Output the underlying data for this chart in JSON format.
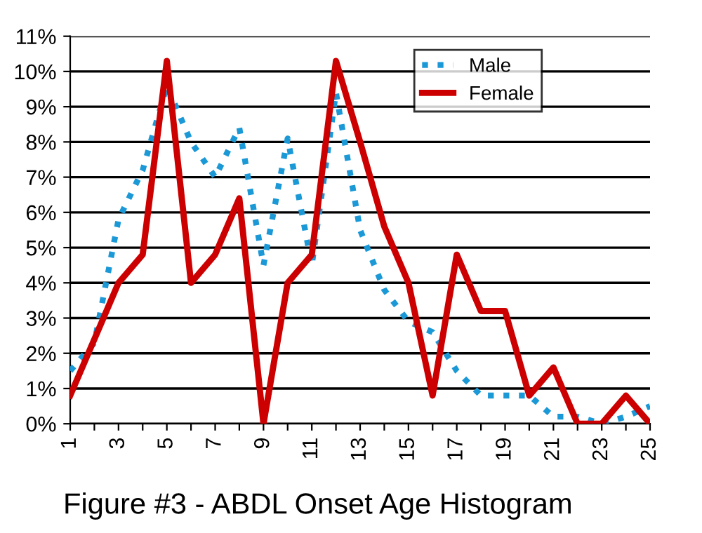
{
  "chart_data": {
    "type": "line",
    "title": "Figure #3 - ABDL Onset Age Histogram",
    "categories": [
      "1",
      null,
      "3",
      null,
      "5",
      null,
      "7",
      null,
      "9",
      null,
      "11",
      null,
      "13",
      null,
      "15",
      null,
      "17",
      null,
      "19",
      null,
      "21",
      null,
      "23",
      null,
      "25"
    ],
    "series": [
      {
        "name": "Male",
        "color": "#1b98d6",
        "line_style": "dotted",
        "values": [
          1.5,
          2.3,
          5.8,
          7.2,
          9.6,
          8.0,
          7.0,
          8.4,
          4.5,
          8.1,
          4.5,
          9.4,
          5.5,
          3.8,
          2.9,
          2.6,
          1.5,
          0.8,
          0.8,
          0.8,
          0.2,
          0.2,
          0.0,
          0.2,
          0.5
        ]
      },
      {
        "name": "Female",
        "color": "#cc0000",
        "line_style": "solid",
        "values": [
          0.8,
          2.4,
          4.0,
          4.8,
          10.3,
          4.0,
          4.8,
          6.4,
          0,
          4.0,
          4.8,
          10.3,
          8.0,
          5.6,
          4.0,
          0.8,
          4.8,
          3.2,
          3.2,
          0.8,
          1.6,
          0,
          0,
          0.8,
          0
        ]
      }
    ],
    "ylim": [
      0,
      11
    ],
    "yticks": [
      {
        "value": 0,
        "label": "0%"
      },
      {
        "value": 1,
        "label": "1%"
      },
      {
        "value": 2,
        "label": "2%"
      },
      {
        "value": 3,
        "label": "3%"
      },
      {
        "value": 4,
        "label": "4%"
      },
      {
        "value": 5,
        "label": "5%"
      },
      {
        "value": 6,
        "label": "6%"
      },
      {
        "value": 7,
        "label": "7%"
      },
      {
        "value": 8,
        "label": "8%"
      },
      {
        "value": 9,
        "label": "9%"
      },
      {
        "value": 10,
        "label": "10%"
      },
      {
        "value": 11,
        "label": "11%"
      }
    ],
    "grid": "y",
    "legend": "top right"
  }
}
